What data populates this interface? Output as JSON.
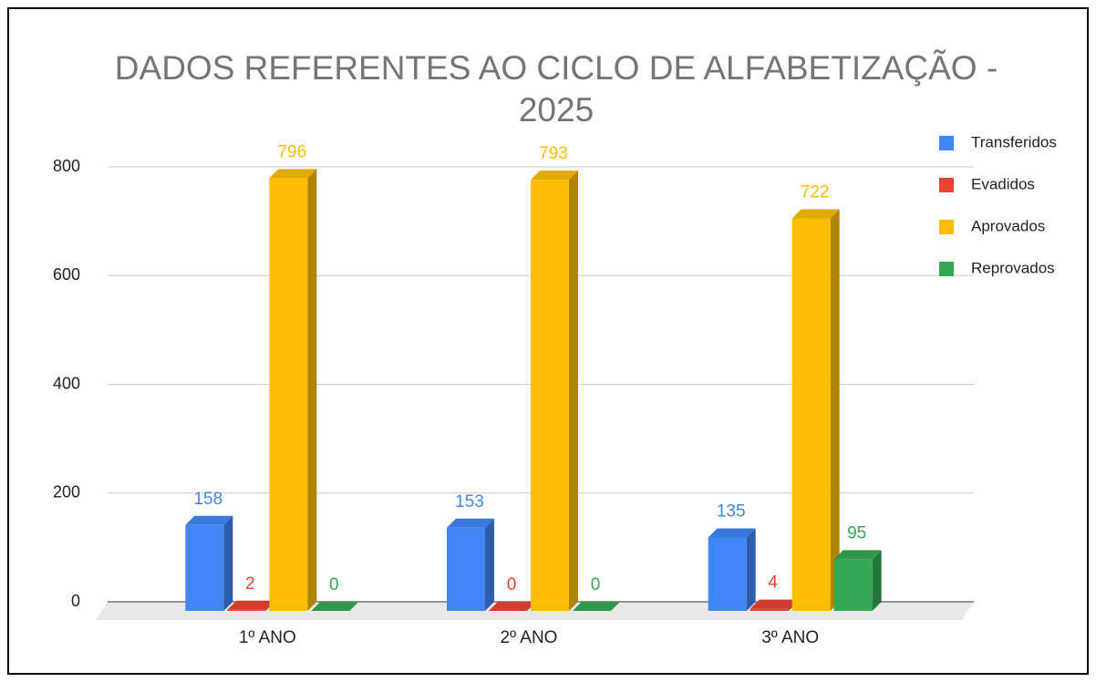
{
  "chart_data": {
    "type": "bar3d",
    "title": "DADOS REFERENTES AO CICLO DE ALFABETIZAÇÃO - 2025",
    "categories": [
      "1º ANO",
      "2º ANO",
      "3º ANO"
    ],
    "series": [
      {
        "name": "Transferidos",
        "color": "#4285f4",
        "values": [
          158,
          153,
          135
        ]
      },
      {
        "name": "Evadidos",
        "color": "#ea4335",
        "values": [
          2,
          0,
          4
        ]
      },
      {
        "name": "Aprovados",
        "color": "#fbbc04",
        "values": [
          796,
          793,
          722
        ]
      },
      {
        "name": "Reprovados",
        "color": "#34a853",
        "values": [
          0,
          0,
          95
        ]
      }
    ],
    "ylim": [
      0,
      800
    ],
    "yticks": [
      0,
      200,
      400,
      600,
      800
    ],
    "grid": true,
    "legend": "right"
  }
}
